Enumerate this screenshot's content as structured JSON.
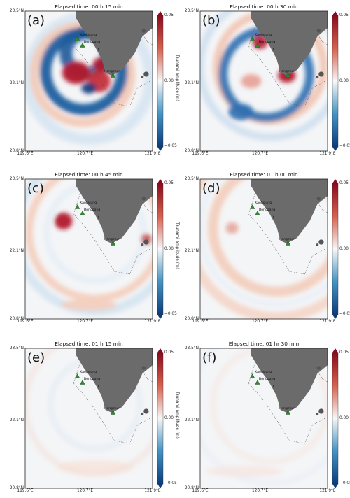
{
  "panels": [
    {
      "label": "(a)",
      "time": "Elapsed time:  00 h 15 min"
    },
    {
      "label": "(b)",
      "time": "Elapsed time:  00 h 30 min"
    },
    {
      "label": "(c)",
      "time": "Elapsed time:  00 h 45 min"
    },
    {
      "label": "(d)",
      "time": "Elapsed time:  01 h 00 min"
    },
    {
      "label": "(e)",
      "time": "Elapsed time:  01 h 15 min"
    },
    {
      "label": "(f)",
      "time": "Elapsed time:  01 hr 30 min"
    }
  ],
  "axes": {
    "lat_top": "23.5°N",
    "lat_mid": "22.1°N",
    "lat_bot": "20.8°N",
    "lon_left": "119.6°E",
    "lon_mid": "120.7°E",
    "lon_right": "121.9°E"
  },
  "colorbar": {
    "title": "Tsunami amplitude (m)",
    "max": "0.05",
    "mid": "0.00",
    "min": "−0.05",
    "colors": {
      "positive": "#8b0a1c",
      "zero": "#f7f7f7",
      "negative": "#0b3c7d"
    }
  },
  "stations": {
    "kaohsiung": "Kaohsiung",
    "donggang": "Donggang",
    "hengchun": "Hengchun"
  },
  "colors": {
    "land": "#6b6b6b",
    "station_marker": "#2e8b2e"
  }
}
